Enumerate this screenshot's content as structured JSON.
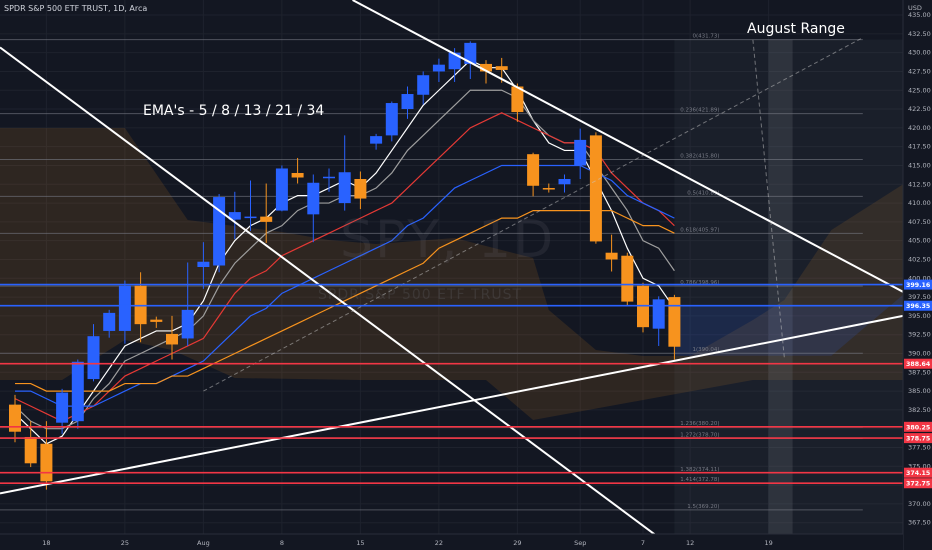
{
  "header": {
    "title": "SPDR S&P 500 ETF TRUST, 1D, Arca"
  },
  "watermark": {
    "symbol": "SPY, 1D",
    "name": "SPDR S&P 500 ETF TRUST"
  },
  "notes": {
    "ema": "EMA's - 5 / 8 / 13 / 21 / 34",
    "range": "August Range"
  },
  "chart_data": {
    "type": "candlestick",
    "currency": "USD",
    "ylim": [
      366,
      437
    ],
    "y_ticks": [
      367.5,
      370.0,
      372.5,
      375.0,
      377.5,
      380.0,
      382.5,
      385.0,
      387.5,
      390.0,
      392.5,
      395.0,
      397.5,
      400.0,
      402.5,
      405.0,
      407.5,
      410.0,
      412.5,
      415.0,
      417.5,
      420.0,
      422.5,
      425.0,
      427.5,
      430.0,
      432.5,
      435.0
    ],
    "x_ticks": [
      {
        "label": "18",
        "i": 2
      },
      {
        "label": "25",
        "i": 7
      },
      {
        "label": "Aug",
        "i": 12
      },
      {
        "label": "8",
        "i": 17
      },
      {
        "label": "15",
        "i": 22
      },
      {
        "label": "22",
        "i": 27
      },
      {
        "label": "29",
        "i": 32
      },
      {
        "label": "Sep",
        "i": 36
      },
      {
        "label": "7",
        "i": 40
      },
      {
        "label": "12",
        "i": 43
      },
      {
        "label": "19",
        "i": 48
      }
    ],
    "candles": [
      {
        "o": 383.2,
        "h": 384.5,
        "l": 378.2,
        "c": 379.6
      },
      {
        "o": 378.9,
        "h": 381.0,
        "l": 374.9,
        "c": 375.4
      },
      {
        "o": 378.0,
        "h": 381.0,
        "l": 371.9,
        "c": 373.0
      },
      {
        "o": 380.8,
        "h": 385.3,
        "l": 379.3,
        "c": 384.8
      },
      {
        "o": 381.0,
        "h": 389.2,
        "l": 380.0,
        "c": 388.9
      },
      {
        "o": 386.6,
        "h": 393.9,
        "l": 386.3,
        "c": 392.3
      },
      {
        "o": 393.0,
        "h": 395.8,
        "l": 392.1,
        "c": 395.4
      },
      {
        "o": 393.0,
        "h": 399.7,
        "l": 391.3,
        "c": 399.0
      },
      {
        "o": 399.0,
        "h": 400.8,
        "l": 391.5,
        "c": 393.9
      },
      {
        "o": 394.5,
        "h": 394.9,
        "l": 393.4,
        "c": 394.2
      },
      {
        "o": 392.6,
        "h": 395.0,
        "l": 389.2,
        "c": 391.2
      },
      {
        "o": 392.0,
        "h": 402.1,
        "l": 391.0,
        "c": 395.8
      },
      {
        "o": 401.5,
        "h": 404.8,
        "l": 398.6,
        "c": 402.2
      },
      {
        "o": 401.7,
        "h": 411.2,
        "l": 400.8,
        "c": 410.8
      },
      {
        "o": 407.8,
        "h": 411.5,
        "l": 405.2,
        "c": 408.8
      },
      {
        "o": 408.0,
        "h": 413.0,
        "l": 406.3,
        "c": 408.2
      },
      {
        "o": 408.2,
        "h": 412.6,
        "l": 404.7,
        "c": 407.5
      },
      {
        "o": 409.0,
        "h": 415.0,
        "l": 408.9,
        "c": 414.6
      },
      {
        "o": 414.0,
        "h": 416.0,
        "l": 412.6,
        "c": 413.4
      },
      {
        "o": 408.5,
        "h": 413.8,
        "l": 404.8,
        "c": 412.7
      },
      {
        "o": 413.3,
        "h": 414.6,
        "l": 411.5,
        "c": 413.5
      },
      {
        "o": 410.0,
        "h": 419.0,
        "l": 409.0,
        "c": 414.1
      },
      {
        "o": 413.2,
        "h": 414.2,
        "l": 409.2,
        "c": 410.6
      },
      {
        "o": 417.9,
        "h": 419.2,
        "l": 417.1,
        "c": 418.9
      },
      {
        "o": 419.0,
        "h": 423.5,
        "l": 418.2,
        "c": 423.3
      },
      {
        "o": 422.5,
        "h": 425.5,
        "l": 421.2,
        "c": 424.5
      },
      {
        "o": 424.4,
        "h": 427.5,
        "l": 423.1,
        "c": 427.0
      },
      {
        "o": 427.5,
        "h": 429.2,
        "l": 426.1,
        "c": 428.4
      },
      {
        "o": 427.8,
        "h": 430.6,
        "l": 426.1,
        "c": 430.0
      },
      {
        "o": 428.5,
        "h": 431.5,
        "l": 426.5,
        "c": 431.3
      },
      {
        "o": 428.5,
        "h": 429.0,
        "l": 425.9,
        "c": 427.5
      },
      {
        "o": 428.2,
        "h": 429.3,
        "l": 426.0,
        "c": 427.7
      },
      {
        "o": 425.5,
        "h": 425.9,
        "l": 420.8,
        "c": 422.1
      },
      {
        "o": 416.5,
        "h": 416.7,
        "l": 410.9,
        "c": 412.3
      },
      {
        "o": 412.0,
        "h": 412.6,
        "l": 411.4,
        "c": 411.8
      },
      {
        "o": 412.5,
        "h": 413.8,
        "l": 411.4,
        "c": 413.2
      },
      {
        "o": 415.0,
        "h": 419.9,
        "l": 413.2,
        "c": 418.4
      },
      {
        "o": 419.0,
        "h": 419.4,
        "l": 404.6,
        "c": 404.9
      },
      {
        "o": 403.4,
        "h": 405.8,
        "l": 400.9,
        "c": 402.5
      },
      {
        "o": 403.0,
        "h": 403.4,
        "l": 396.3,
        "c": 396.9
      },
      {
        "o": 399.0,
        "h": 399.4,
        "l": 392.8,
        "c": 393.5
      },
      {
        "o": 393.3,
        "h": 397.6,
        "l": 391.0,
        "c": 397.2
      },
      {
        "o": 397.5,
        "h": 397.8,
        "l": 389.2,
        "c": 390.9
      }
    ],
    "ema_series": [
      {
        "name": "5",
        "color": "#ffffff",
        "values": [
          382,
          380,
          378,
          379,
          382,
          385,
          388,
          391,
          392,
          393,
          393,
          394,
          397,
          402,
          405,
          407,
          408,
          410,
          411,
          411,
          412,
          413,
          412,
          414,
          417,
          420,
          423,
          425,
          427,
          429,
          428,
          428,
          425,
          421,
          418,
          417,
          417,
          413,
          409,
          404,
          400,
          399,
          396
        ]
      },
      {
        "name": "8",
        "color": "#9e9e9e",
        "values": [
          383,
          381,
          380,
          380,
          381,
          384,
          386,
          389,
          390,
          391,
          392,
          393,
          395,
          399,
          402,
          404,
          406,
          407,
          409,
          410,
          410,
          411,
          411,
          412,
          414,
          417,
          419,
          421,
          423,
          425,
          425,
          425,
          424,
          421,
          419,
          418,
          418,
          415,
          412,
          409,
          405,
          404,
          401
        ]
      },
      {
        "name": "13",
        "color": "#e53935",
        "values": [
          384,
          383,
          382,
          381,
          382,
          383,
          385,
          387,
          388,
          389,
          390,
          391,
          392,
          395,
          398,
          400,
          401,
          403,
          404,
          405,
          406,
          407,
          408,
          409,
          410,
          412,
          414,
          416,
          418,
          420,
          421,
          422,
          421,
          420,
          419,
          418,
          418,
          417,
          414,
          412,
          410,
          409,
          407
        ]
      },
      {
        "name": "21",
        "color": "#2962ff",
        "values": [
          385,
          385,
          384,
          383,
          383,
          383,
          384,
          385,
          386,
          386,
          387,
          388,
          389,
          391,
          393,
          395,
          396,
          398,
          399,
          400,
          401,
          402,
          403,
          404,
          405,
          407,
          408,
          410,
          412,
          413,
          414,
          415,
          415,
          415,
          415,
          415,
          415,
          414,
          413,
          411,
          410,
          409,
          408
        ]
      },
      {
        "name": "34",
        "color": "#f7931e",
        "values": [
          386,
          386,
          385,
          385,
          385,
          385,
          385,
          386,
          386,
          386,
          387,
          387,
          388,
          389,
          390,
          391,
          392,
          393,
          394,
          395,
          396,
          397,
          398,
          399,
          400,
          401,
          402,
          404,
          405,
          406,
          407,
          408,
          408,
          409,
          409,
          409,
          409,
          409,
          409,
          408,
          407,
          407,
          406
        ]
      }
    ],
    "horizontal_levels": [
      {
        "price": 399.16,
        "label": "399.16",
        "color": "#2962ff"
      },
      {
        "price": 396.35,
        "label": "396.35",
        "color": "#2962ff"
      },
      {
        "price": 388.64,
        "label": "388.64",
        "color": "#f23645"
      },
      {
        "price": 380.25,
        "label": "380.25",
        "color": "#f23645"
      },
      {
        "price": 378.75,
        "label": "378.75",
        "color": "#f23645"
      },
      {
        "price": 374.15,
        "label": "374.15",
        "color": "#f23645"
      },
      {
        "price": 372.75,
        "label": "372.75",
        "color": "#f23645"
      }
    ],
    "fib_levels": [
      {
        "ratio": "0",
        "price": "431.73"
      },
      {
        "ratio": "0.236",
        "price": "421.89"
      },
      {
        "ratio": "0.382",
        "price": "415.80"
      },
      {
        "ratio": "0.5",
        "price": "410.89"
      },
      {
        "ratio": "0.618",
        "price": "405.97"
      },
      {
        "ratio": "0.786",
        "price": "398.96"
      },
      {
        "ratio": "1",
        "price": "390.04"
      },
      {
        "ratio": "1.236",
        "price": "380.20"
      },
      {
        "ratio": "1.272",
        "price": "378.70"
      },
      {
        "ratio": "1.382",
        "price": "374.11"
      },
      {
        "ratio": "1.414",
        "price": "372.78"
      },
      {
        "ratio": "1.5",
        "price": "369.20"
      },
      {
        "ratio": "1.618",
        "price": "364.28"
      }
    ],
    "colors": {
      "up": "#2962ff",
      "down": "#f7931e",
      "background": "#131722",
      "axis_text": "#b2b5be",
      "grid": "#1e222d",
      "trend": "#ffffff"
    }
  }
}
